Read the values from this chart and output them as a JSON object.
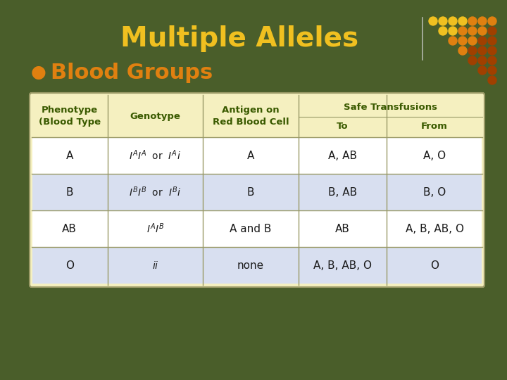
{
  "bg_color": "#4a5e2a",
  "title": "Multiple Alleles",
  "title_color": "#f0c020",
  "title_fontsize": 28,
  "bullet_text": "Blood Groups",
  "bullet_color": "#e08010",
  "bullet_fontsize": 22,
  "table_bg_header": "#f5f0c0",
  "table_bg_row_even": "#ffffff",
  "table_bg_row_odd": "#d8dff0",
  "table_border_color": "#999966",
  "header_color": "#3a5a00",
  "cell_color": "#1a1a1a",
  "dot_color_bright": "#f0c020",
  "dot_color_mid": "#e08010",
  "dot_color_dark": "#a04000",
  "line_color": "#cccccc",
  "rows": [
    [
      "A",
      "IA_IA",
      "A",
      "A, AB",
      "A, O"
    ],
    [
      "B",
      "IB_IB",
      "B",
      "B, AB",
      "B, O"
    ],
    [
      "AB",
      "IA_IB",
      "A and B",
      "AB",
      "A, B, AB, O"
    ],
    [
      "O",
      "ii",
      "none",
      "A, B, AB, O",
      "O"
    ]
  ]
}
